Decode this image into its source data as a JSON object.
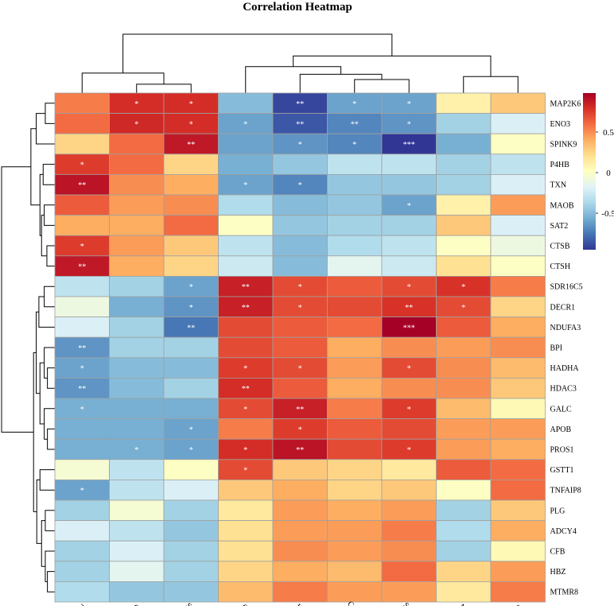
{
  "chart_data": {
    "type": "heatmap",
    "title": "Correlation Heatmap",
    "columns": [
      "Tau",
      "Gly",
      "SAH",
      "Cys",
      "Hcy",
      "Cysthi",
      "SAM",
      "Met",
      "Ser"
    ],
    "rows": [
      "MAP2K6",
      "ENO3",
      "SPINK9",
      "P4HB",
      "TXN",
      "MAOB",
      "SAT2",
      "CTSB",
      "CTSH",
      "SDR16C5",
      "DECR1",
      "NDUFA3",
      "BPI",
      "HADHA",
      "HDAC3",
      "GALC",
      "APOB",
      "PROS1",
      "GSTT1",
      "TNFAIP8",
      "PLG",
      "ADCY4",
      "CFB",
      "HBZ",
      "MTMR8"
    ],
    "values": [
      [
        0.55,
        0.8,
        0.8,
        -0.5,
        -0.9,
        -0.6,
        -0.6,
        0.1,
        0.3
      ],
      [
        0.6,
        0.82,
        0.8,
        -0.6,
        -0.85,
        -0.7,
        -0.65,
        -0.4,
        -0.2
      ],
      [
        0.25,
        0.6,
        0.88,
        -0.6,
        -0.65,
        -0.7,
        -0.95,
        -0.55,
        0.0
      ],
      [
        0.75,
        0.6,
        0.25,
        -0.55,
        -0.45,
        -0.3,
        -0.3,
        -0.4,
        -0.3
      ],
      [
        0.9,
        0.5,
        0.4,
        -0.6,
        -0.7,
        -0.45,
        -0.45,
        -0.4,
        -0.2
      ],
      [
        0.65,
        0.45,
        0.5,
        -0.35,
        -0.5,
        -0.45,
        -0.6,
        0.1,
        0.45
      ],
      [
        0.4,
        0.4,
        0.6,
        0.0,
        -0.45,
        -0.4,
        -0.4,
        0.3,
        -0.2
      ],
      [
        0.75,
        0.45,
        0.3,
        -0.3,
        -0.5,
        -0.35,
        -0.3,
        0.0,
        -0.1
      ],
      [
        0.88,
        0.4,
        0.25,
        -0.25,
        -0.5,
        -0.15,
        -0.25,
        0.2,
        0.0
      ],
      [
        -0.3,
        -0.4,
        -0.6,
        0.85,
        0.7,
        0.65,
        0.7,
        0.78,
        0.55
      ],
      [
        -0.1,
        -0.55,
        -0.65,
        0.85,
        0.7,
        0.7,
        0.78,
        0.7,
        0.25
      ],
      [
        -0.2,
        -0.4,
        -0.75,
        0.7,
        0.65,
        0.6,
        0.98,
        0.65,
        0.4
      ],
      [
        -0.65,
        -0.4,
        -0.4,
        0.7,
        0.65,
        0.4,
        0.5,
        0.45,
        0.5
      ],
      [
        -0.6,
        -0.5,
        -0.5,
        0.75,
        0.7,
        0.45,
        0.7,
        0.5,
        0.35
      ],
      [
        -0.65,
        -0.5,
        -0.4,
        0.8,
        0.65,
        0.4,
        0.5,
        0.5,
        0.3
      ],
      [
        -0.55,
        -0.55,
        -0.55,
        0.7,
        0.85,
        0.55,
        0.75,
        0.35,
        0.05
      ],
      [
        -0.55,
        -0.55,
        -0.6,
        0.55,
        0.75,
        0.65,
        0.7,
        0.45,
        0.45
      ],
      [
        -0.55,
        -0.55,
        -0.6,
        0.8,
        0.9,
        0.7,
        0.75,
        0.45,
        0.4
      ],
      [
        -0.05,
        -0.3,
        0.0,
        0.7,
        0.3,
        0.25,
        0.15,
        0.65,
        0.6
      ],
      [
        -0.6,
        -0.3,
        -0.2,
        0.3,
        0.4,
        0.25,
        0.3,
        0.0,
        0.6
      ],
      [
        -0.4,
        -0.05,
        -0.4,
        0.15,
        0.45,
        0.4,
        0.45,
        -0.4,
        0.3
      ],
      [
        -0.2,
        -0.3,
        -0.45,
        0.2,
        0.45,
        0.45,
        0.55,
        -0.35,
        0.4
      ],
      [
        -0.4,
        -0.2,
        -0.4,
        0.2,
        0.5,
        0.45,
        0.5,
        -0.4,
        0.05
      ],
      [
        -0.4,
        -0.15,
        -0.4,
        0.25,
        0.4,
        0.35,
        0.6,
        0.25,
        0.45
      ],
      [
        -0.35,
        -0.45,
        -0.45,
        0.35,
        0.55,
        0.45,
        0.45,
        0.15,
        0.55
      ]
    ],
    "significance": [
      [
        "",
        "*",
        "*",
        "",
        "**",
        "*",
        "*",
        "",
        ""
      ],
      [
        "",
        "*",
        "*",
        "*",
        "**",
        "**",
        "*",
        "",
        ""
      ],
      [
        "",
        "",
        "**",
        "",
        "*",
        "*",
        "***",
        "",
        ""
      ],
      [
        "*",
        "",
        "",
        "",
        "",
        "",
        "",
        "",
        ""
      ],
      [
        "**",
        "",
        "",
        "*",
        "*",
        "",
        "",
        "",
        ""
      ],
      [
        "",
        "",
        "",
        "",
        "",
        "",
        "*",
        "",
        ""
      ],
      [
        "",
        "",
        "",
        "",
        "",
        "",
        "",
        "",
        ""
      ],
      [
        "*",
        "",
        "",
        "",
        "",
        "",
        "",
        "",
        ""
      ],
      [
        "**",
        "",
        "",
        "",
        "",
        "",
        "",
        "",
        ""
      ],
      [
        "",
        "",
        "*",
        "**",
        "*",
        "",
        "*",
        "*",
        ""
      ],
      [
        "",
        "",
        "*",
        "**",
        "*",
        "",
        "**",
        "*",
        ""
      ],
      [
        "",
        "",
        "**",
        "",
        "",
        "",
        "***",
        "",
        ""
      ],
      [
        "**",
        "",
        "",
        "",
        "",
        "",
        "",
        "",
        ""
      ],
      [
        "*",
        "",
        "",
        "*",
        "*",
        "",
        "*",
        "",
        ""
      ],
      [
        "**",
        "",
        "",
        "**",
        "",
        "",
        "",
        "",
        ""
      ],
      [
        "*",
        "",
        "",
        "*",
        "**",
        "",
        "*",
        "",
        ""
      ],
      [
        "",
        "",
        "*",
        "",
        "*",
        "",
        "",
        "",
        ""
      ],
      [
        "",
        "*",
        "*",
        "*",
        "**",
        "",
        "*",
        "",
        ""
      ],
      [
        "",
        "",
        "",
        "*",
        "",
        "",
        "",
        "",
        ""
      ],
      [
        "*",
        "",
        "",
        "",
        "",
        "",
        "",
        "",
        ""
      ],
      [
        "",
        "",
        "",
        "",
        "",
        "",
        "",
        "",
        ""
      ],
      [
        "",
        "",
        "",
        "",
        "",
        "",
        "",
        "",
        ""
      ],
      [
        "",
        "",
        "",
        "",
        "",
        "",
        "",
        "",
        ""
      ],
      [
        "",
        "",
        "",
        "",
        "",
        "",
        "",
        "",
        ""
      ],
      [
        "",
        "",
        "",
        "",
        "",
        "",
        "",
        "",
        ""
      ]
    ],
    "legend": {
      "range": [
        -0.95,
        0.98
      ],
      "ticks": [
        0.5,
        0,
        -0.5
      ],
      "tick_labels": [
        "0.5",
        "0",
        "-0.5"
      ]
    },
    "colorscale": [
      "#313695",
      "#4575b4",
      "#74add1",
      "#abd9e9",
      "#e0f3f8",
      "#ffffbf",
      "#fee090",
      "#fdae61",
      "#f46d43",
      "#d73027",
      "#a50026"
    ],
    "cell_border_color": "#a0a0a0"
  }
}
